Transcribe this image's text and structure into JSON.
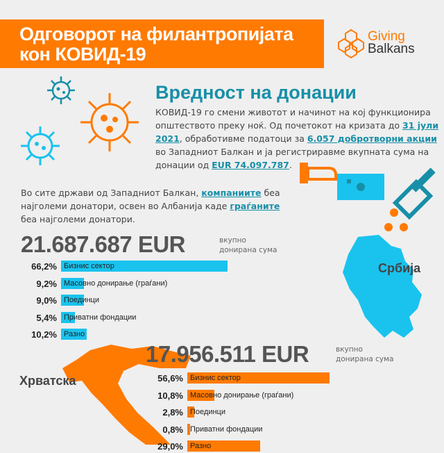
{
  "header": {
    "title_line1": "Одговорот на филантропијата",
    "title_line2": "кон КОВИД-19"
  },
  "logo": {
    "line1": "Giving",
    "line2": "Balkans"
  },
  "section": {
    "heading": "Вредност на донации",
    "intro_a": "КОВИД-19 го смени животот и начинот на кој функционира општеството преку ноќ. Од почетокот на кризата до ",
    "intro_date": "31 јули 2021",
    "intro_b": ", обработивме податоци за ",
    "intro_actions": "6.057 добротворни акции",
    "intro_c": " во Западниот Балкан  и ја регистриравме вкупната сума на донации од ",
    "intro_total": "EUR 74.097.787",
    "intro_d": "."
  },
  "para2": {
    "a": "Во сите држави од Западниот Балкан, ",
    "companies": "компаниите",
    "b": " беа најголеми донатори, освен во Албанија каде ",
    "citizens": "граѓаните",
    "c": " беа најголеми донатори."
  },
  "colors": {
    "orange": "#ff7a00",
    "blue": "#19c3ee",
    "teal": "#178fa8"
  },
  "serbia": {
    "country": "Србија",
    "total": "21.687.687 EUR",
    "total_label1": "вкупно",
    "total_label2": "донирана сума",
    "rows": [
      {
        "pct": "66,2%",
        "value": 66.2,
        "label": "Бизнис сектор"
      },
      {
        "pct": "9,2%",
        "value": 9.2,
        "label": "Масовно донирање (граѓани)"
      },
      {
        "pct": "9,0%",
        "value": 9.0,
        "label": "Поединци"
      },
      {
        "pct": "5,4%",
        "value": 5.4,
        "label": "Приватни фондации"
      },
      {
        "pct": "10,2%",
        "value": 10.2,
        "label": "Разно"
      }
    ]
  },
  "croatia": {
    "country": "Хрватска",
    "total": "17.956.511 EUR",
    "total_label1": "вкупно",
    "total_label2": "донирана сума",
    "rows": [
      {
        "pct": "56,6%",
        "value": 56.6,
        "label": "Бизнис сектор"
      },
      {
        "pct": "10,8%",
        "value": 10.8,
        "label": "Масовно донирање (граѓани)"
      },
      {
        "pct": "2,8%",
        "value": 2.8,
        "label": "Поединци"
      },
      {
        "pct": "0,8%",
        "value": 0.8,
        "label": "Приватни фондации"
      },
      {
        "pct": "29,0%",
        "value": 29.0,
        "label": "Разно"
      }
    ]
  }
}
